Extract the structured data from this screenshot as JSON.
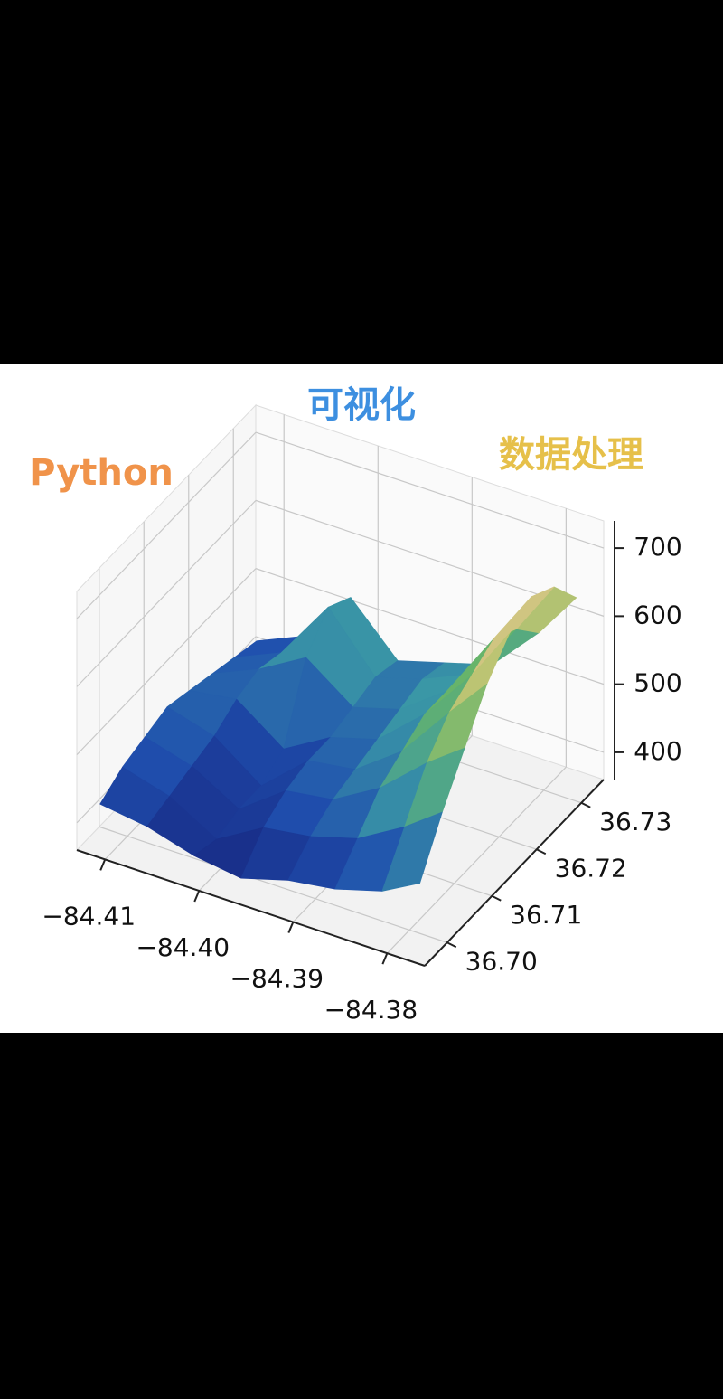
{
  "chart_data": {
    "type": "surface",
    "annotations": [
      {
        "text": "可视化",
        "color": "#3d8fe0"
      },
      {
        "text": "Python",
        "color": "#f0934a"
      },
      {
        "text": "数据处理",
        "color": "#e6c04a"
      }
    ],
    "x": [
      -84.411,
      -84.406,
      -84.401,
      -84.396,
      -84.391,
      -84.386,
      -84.381,
      -84.377
    ],
    "y": [
      36.696,
      36.701,
      36.706,
      36.711,
      36.716,
      36.721,
      36.726,
      36.731
    ],
    "z": [
      [
        430,
        420,
        400,
        390,
        410,
        420,
        440,
        470
      ],
      [
        450,
        430,
        390,
        430,
        440,
        460,
        500,
        540
      ],
      [
        460,
        440,
        400,
        450,
        460,
        500,
        560,
        600
      ],
      [
        470,
        450,
        400,
        460,
        470,
        520,
        600,
        660
      ],
      [
        460,
        470,
        420,
        460,
        480,
        540,
        620,
        700
      ],
      [
        450,
        480,
        520,
        470,
        490,
        540,
        640,
        720
      ],
      [
        440,
        470,
        560,
        480,
        500,
        530,
        620,
        700
      ],
      [
        430,
        460,
        540,
        470,
        490,
        510,
        580,
        650
      ]
    ],
    "colormap": [
      "#16207a",
      "#1f4fae",
      "#3a98a6",
      "#66b46a",
      "#c6c674",
      "#ebc2a6"
    ],
    "xlim": [
      -84.413,
      -84.376
    ],
    "ylim": [
      36.695,
      36.735
    ],
    "zlim": [
      360,
      740
    ],
    "xticks": [
      {
        "value": -84.41,
        "label": "−84.41"
      },
      {
        "value": -84.4,
        "label": "−84.40"
      },
      {
        "value": -84.39,
        "label": "−84.39"
      },
      {
        "value": -84.38,
        "label": "−84.38"
      }
    ],
    "yticks": [
      {
        "value": 36.7,
        "label": "36.70"
      },
      36.71,
      36.72,
      36.73
    ],
    "zticks": [
      400,
      500,
      600,
      700
    ],
    "grid": true
  }
}
